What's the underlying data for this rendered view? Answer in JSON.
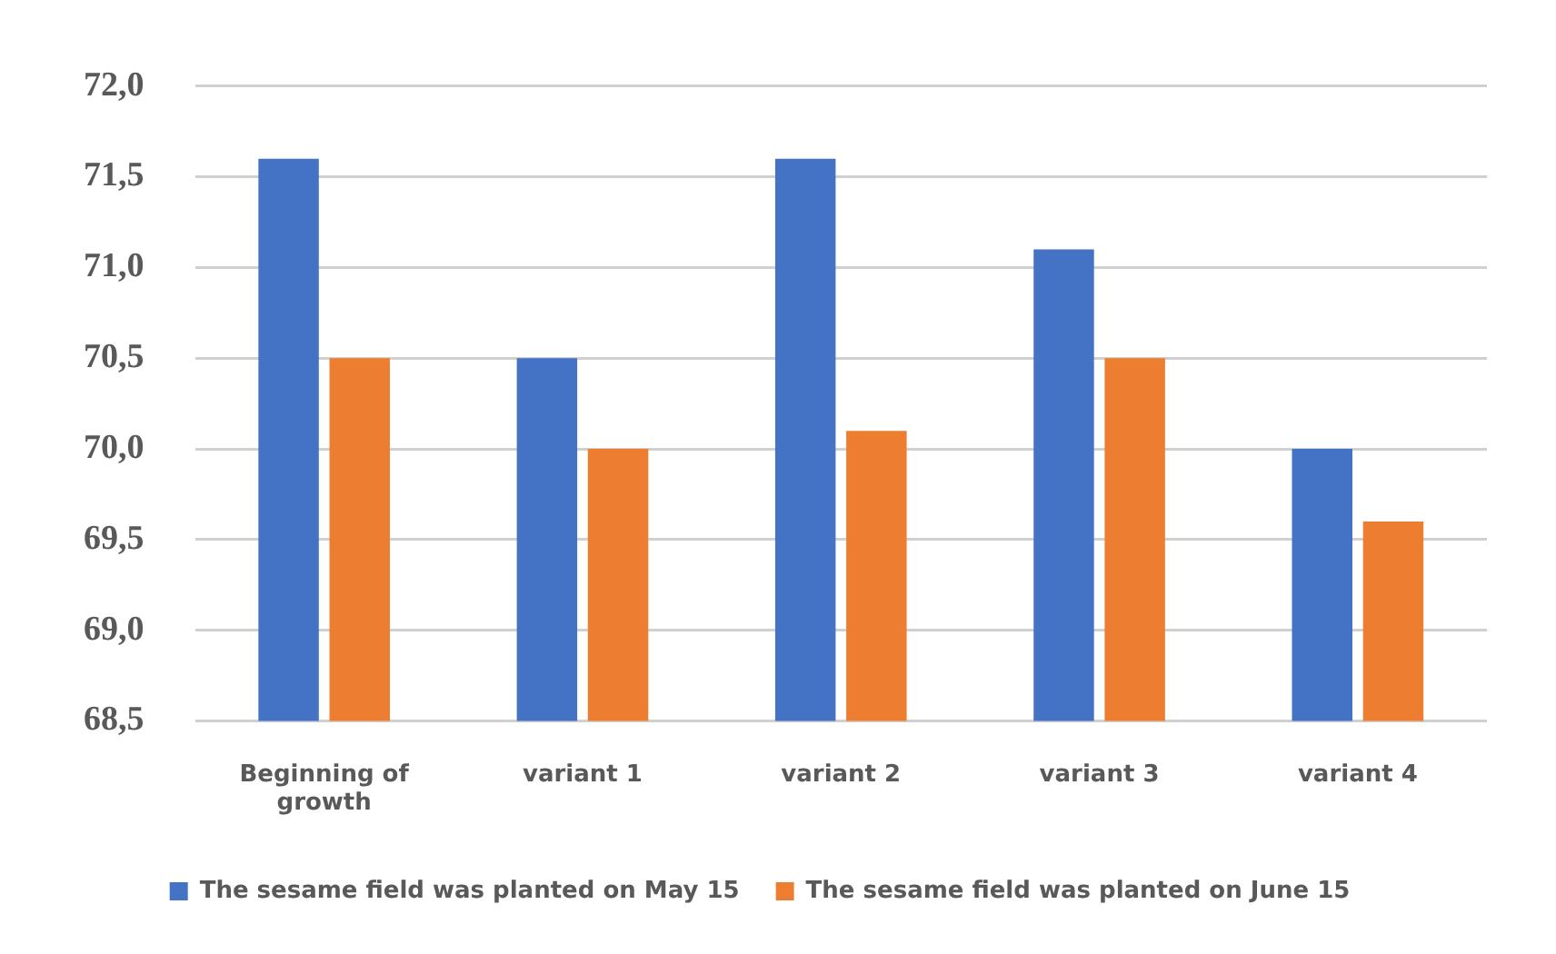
{
  "chart_data": {
    "type": "bar",
    "categories": [
      "Beginning of growth",
      "variant 1",
      "variant 2",
      "variant 3",
      "variant 4"
    ],
    "series": [
      {
        "name": "The sesame field was planted on May 15",
        "color": "#4472c4",
        "values": [
          71.6,
          70.5,
          71.6,
          71.1,
          70.0
        ]
      },
      {
        "name": "The sesame field was planted on June 15",
        "color": "#ed7d31",
        "values": [
          70.5,
          70.0,
          70.1,
          70.5,
          69.6
        ]
      }
    ],
    "ylim": [
      68.5,
      72.0
    ],
    "yticks": [
      {
        "value": 68.5,
        "label": "68,5"
      },
      {
        "value": 69.0,
        "label": "69,0"
      },
      {
        "value": 69.5,
        "label": "69,5"
      },
      {
        "value": 70.0,
        "label": "70,0"
      },
      {
        "value": 70.5,
        "label": "70,5"
      },
      {
        "value": 71.0,
        "label": "71,0"
      },
      {
        "value": 71.5,
        "label": "71,5"
      },
      {
        "value": 72.0,
        "label": "72,0"
      }
    ],
    "grid": "y",
    "legend": "bottom"
  }
}
